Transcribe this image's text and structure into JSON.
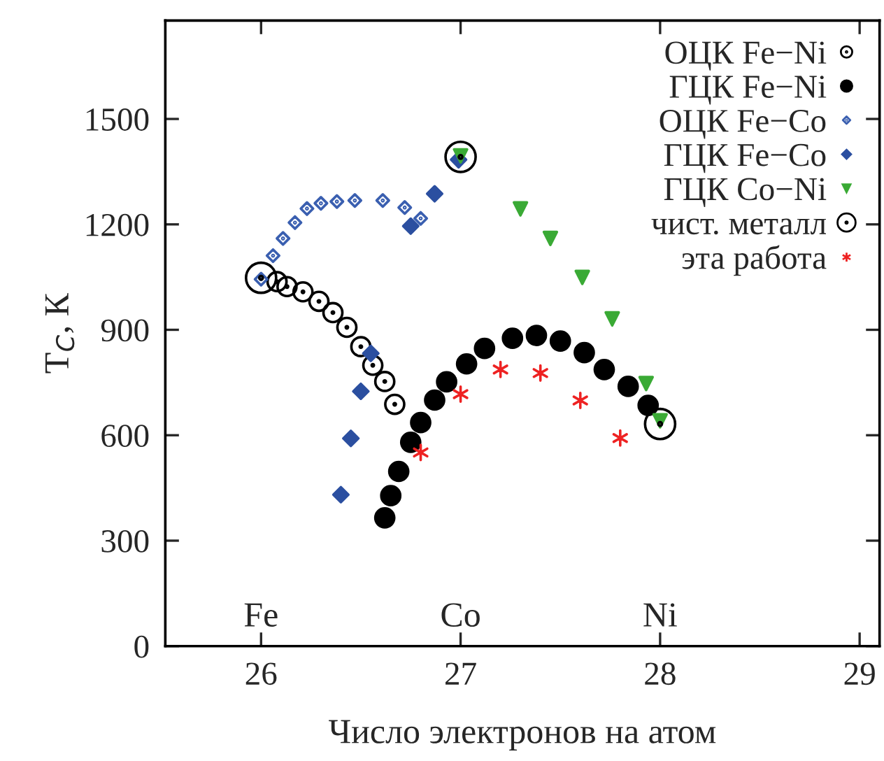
{
  "chart_data": {
    "type": "scatter",
    "xlabel": "Число электронов на атом",
    "ylabel": "T$_{C}$, К",
    "xlim": [
      25.52,
      29.1
    ],
    "ylim": [
      0,
      1780
    ],
    "xticks": [
      26,
      27,
      28,
      29
    ],
    "yticks": [
      0,
      300,
      600,
      900,
      1200,
      1500
    ],
    "grid": false,
    "legend": "top right",
    "annotations": [
      "Fe",
      "Co",
      "Ni"
    ],
    "series": [
      {
        "name": "ОЦК Fe−Ni",
        "color": "#000000",
        "marker": "circle",
        "x": [
          26.08,
          26.13,
          26.21,
          26.29,
          26.36,
          26.43,
          26.5,
          26.56,
          26.62,
          26.67
        ],
        "values": [
          1037,
          1023,
          1008,
          981,
          949,
          907,
          852,
          799,
          753,
          688
        ]
      },
      {
        "name": "ГЦК Fe−Ni",
        "color": "#000000",
        "marker": "circle",
        "x": [
          26.62,
          26.65,
          26.69,
          26.75,
          26.8,
          26.87,
          26.93,
          27.03,
          27.12,
          27.26,
          27.38,
          27.5,
          27.62,
          27.72,
          27.84,
          27.94
        ],
        "values": [
          365,
          428,
          497,
          580,
          636,
          700,
          752,
          803,
          847,
          876,
          884,
          868,
          835,
          787,
          739,
          685
        ]
      },
      {
        "name": "ОЦК Fe−Co",
        "color": "#3a5fb0",
        "marker": "diamond",
        "x": [
          26.0,
          26.06,
          26.11,
          26.17,
          26.23,
          26.3,
          26.38,
          26.47,
          26.61,
          26.72,
          26.8
        ],
        "values": [
          1044,
          1111,
          1160,
          1205,
          1245,
          1260,
          1265,
          1268,
          1268,
          1248,
          1217
        ]
      },
      {
        "name": "ГЦК Fe−Co",
        "color": "#2b4fa0",
        "marker": "diamond",
        "x": [
          26.4,
          26.45,
          26.5,
          26.55,
          26.75,
          26.87,
          26.99
        ],
        "values": [
          431,
          591,
          725,
          833,
          1195,
          1287,
          1384
        ]
      },
      {
        "name": "ГЦК Co−Ni",
        "color": "#3aaa35",
        "marker": "triangle",
        "x": [
          27.0,
          27.3,
          27.45,
          27.61,
          27.76,
          27.93,
          28.0
        ],
        "values": [
          1395,
          1244,
          1160,
          1049,
          931,
          747,
          641
        ]
      },
      {
        "name": "чист. металл",
        "color": "#000000",
        "marker": "circle",
        "x": [
          26.0,
          27.0,
          28.0
        ],
        "values": [
          1048,
          1392,
          632
        ]
      },
      {
        "name": "эта работа",
        "color": "#ee2222",
        "marker": "cross",
        "x": [
          26.8,
          27.0,
          27.2,
          27.4,
          27.6,
          27.8
        ],
        "values": [
          551,
          717,
          787,
          777,
          699,
          592
        ]
      }
    ]
  }
}
